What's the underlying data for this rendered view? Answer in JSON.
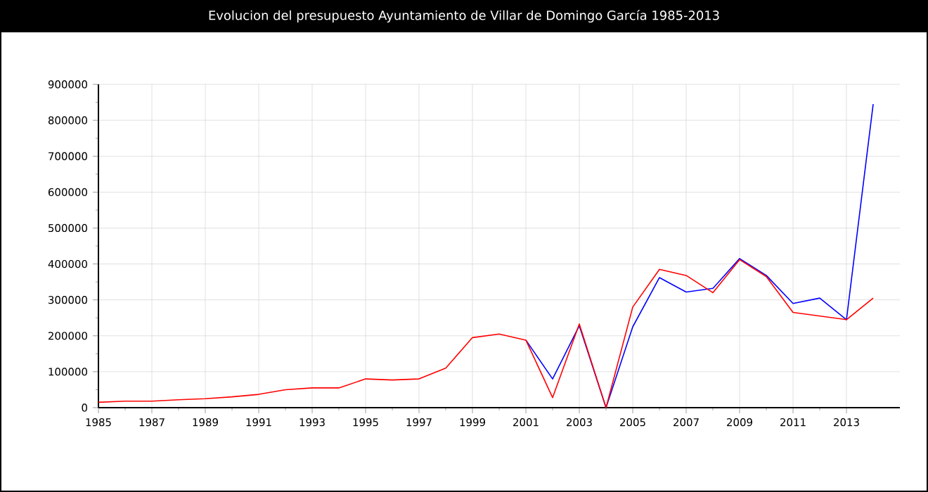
{
  "chart_data": {
    "type": "line",
    "title": "Evolucion del presupuesto Ayuntamiento de Villar de Domingo García 1985-2013",
    "x": [
      1985,
      1986,
      1987,
      1988,
      1989,
      1990,
      1991,
      1992,
      1993,
      1994,
      1995,
      1996,
      1997,
      1998,
      1999,
      2000,
      2001,
      2002,
      2003,
      2004,
      2005,
      2006,
      2007,
      2008,
      2009,
      2010,
      2011,
      2012,
      2013,
      2014
    ],
    "series": [
      {
        "color": "#0000ff",
        "values": [
          null,
          null,
          null,
          null,
          null,
          null,
          null,
          null,
          null,
          null,
          null,
          null,
          null,
          null,
          null,
          null,
          188000,
          80000,
          228000,
          0,
          225000,
          362000,
          322000,
          332000,
          415000,
          368000,
          290000,
          305000,
          245000,
          845000
        ]
      },
      {
        "color": "#ff0000",
        "values": [
          15000,
          18000,
          18000,
          22000,
          25000,
          30000,
          37000,
          50000,
          55000,
          55000,
          80000,
          77000,
          80000,
          110000,
          195000,
          205000,
          188000,
          28000,
          233000,
          0,
          280000,
          385000,
          368000,
          320000,
          412000,
          365000,
          265000,
          255000,
          245000,
          305000
        ]
      }
    ],
    "xlim": [
      1985,
      2015
    ],
    "xticks": [
      1985,
      1987,
      1989,
      1991,
      1993,
      1995,
      1997,
      1999,
      2001,
      2003,
      2005,
      2007,
      2009,
      2011,
      2013
    ],
    "ylim": [
      0,
      900000
    ],
    "yticks": [
      0,
      100000,
      200000,
      300000,
      400000,
      500000,
      600000,
      700000,
      800000,
      900000
    ],
    "grid": true
  }
}
